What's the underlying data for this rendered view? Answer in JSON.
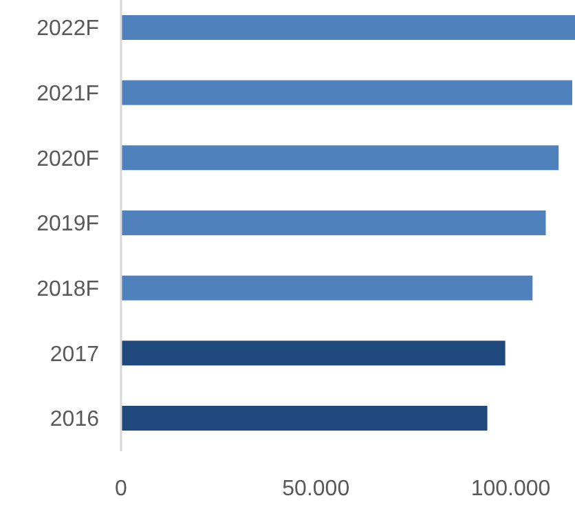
{
  "chart_data": {
    "type": "bar",
    "orientation": "horizontal",
    "categories": [
      "2022F",
      "2021F",
      "2020F",
      "2019F",
      "2018F",
      "2017",
      "2016"
    ],
    "values": [
      116500,
      115800,
      112300,
      109000,
      105600,
      98600,
      94000
    ],
    "colors": [
      "#4f81bd",
      "#4f81bd",
      "#4f81bd",
      "#4f81bd",
      "#4f81bd",
      "#1f497d",
      "#1f497d"
    ],
    "xlim": [
      0,
      116500
    ],
    "xticks": [
      0,
      {
        "value": 50000,
        "label": "50.000"
      },
      {
        "value": 100000,
        "label": "100.000"
      }
    ],
    "grid": false
  }
}
